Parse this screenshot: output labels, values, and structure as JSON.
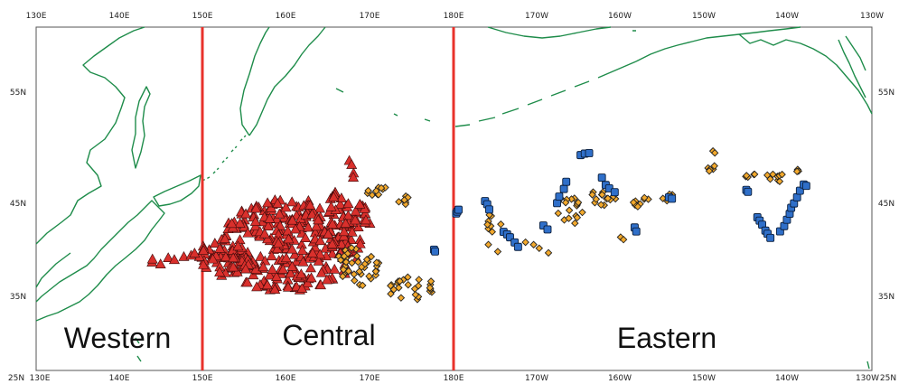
{
  "map": {
    "lon_labels": [
      "130E",
      "140E",
      "150E",
      "160E",
      "170E",
      "180E",
      "170W",
      "160W",
      "150W",
      "140W",
      "130W"
    ],
    "lat_labels": [
      "25N",
      "35N",
      "45N",
      "55N"
    ],
    "region_labels": [
      "Western",
      "Central",
      "Eastern"
    ],
    "boundaries": [
      "150E",
      "180E"
    ],
    "colors": {
      "coastline": "#1e8c4a",
      "boundary": "#e8322b",
      "triangle": "#d9302c",
      "diamond": "#f3a92c",
      "square": "#2f6fc9",
      "frame": "#555555"
    },
    "marker_shapes": [
      "red-triangle",
      "orange-diamond",
      "blue-square"
    ]
  }
}
